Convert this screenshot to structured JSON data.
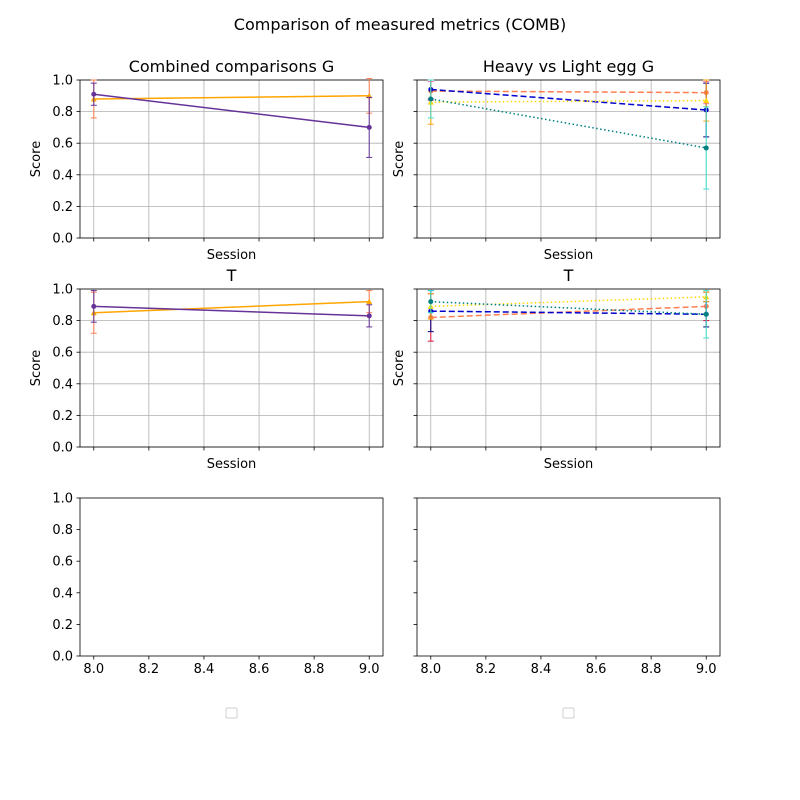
{
  "suptitle": "Comparison of measured metrics (COMB)",
  "chart_data": [
    {
      "type": "line",
      "title": "Combined comparisons G",
      "xlabel": "Session",
      "ylabel": "Score",
      "x": [
        8,
        9
      ],
      "xlim": [
        7.95,
        9.05
      ],
      "ylim": [
        0,
        1
      ],
      "xtick_labels_visible": false,
      "yticks": [
        "0.0",
        "0.2",
        "0.4",
        "0.6",
        "0.8",
        "1.0"
      ],
      "grid": true,
      "series": [
        {
          "values": [
            0.88,
            0.9
          ],
          "errors": [
            0.12,
            0.11
          ],
          "color": "#ffa500",
          "ecolor": "#ff7f50",
          "dash": "solid",
          "marker": "triangle"
        },
        {
          "values": [
            0.91,
            0.7
          ],
          "errors": [
            0.07,
            0.19
          ],
          "color": "#663399",
          "ecolor": "#663399",
          "dash": "solid",
          "marker": "circle"
        }
      ]
    },
    {
      "type": "line",
      "title": "Heavy vs Light egg G",
      "xlabel": "Session",
      "ylabel": "Score",
      "x": [
        8,
        9
      ],
      "xlim": [
        7.95,
        9.05
      ],
      "ylim": [
        0,
        1
      ],
      "xtick_labels_visible": false,
      "ytick_labels_visible": false,
      "yticks": [
        "0.0",
        "0.2",
        "0.4",
        "0.6",
        "0.8",
        "1.0"
      ],
      "grid": true,
      "series": [
        {
          "values": [
            0.93,
            0.92
          ],
          "errors": [
            0.06,
            0.07
          ],
          "color": "#ff7f50",
          "ecolor": "#ff69b4",
          "dash": "dashed",
          "marker": "circle"
        },
        {
          "values": [
            0.94,
            0.81
          ],
          "errors": [
            0.06,
            0.17
          ],
          "color": "#0000cd",
          "ecolor": "#000080",
          "dash": "dashed",
          "marker": "circle"
        },
        {
          "values": [
            0.86,
            0.87
          ],
          "errors": [
            0.14,
            0.13
          ],
          "color": "#ffd700",
          "ecolor": "#ffa500",
          "dash": "dotted",
          "marker": "triangle"
        },
        {
          "values": [
            0.88,
            0.57
          ],
          "errors": [
            0.12,
            0.26
          ],
          "color": "#008080",
          "ecolor": "#40e0d0",
          "dash": "dotted",
          "marker": "circle"
        }
      ]
    },
    {
      "type": "line",
      "title": "T",
      "xlabel": "Session",
      "ylabel": "Score",
      "x": [
        8,
        9
      ],
      "xlim": [
        7.95,
        9.05
      ],
      "ylim": [
        0,
        1
      ],
      "xtick_labels_visible": false,
      "yticks": [
        "0.0",
        "0.2",
        "0.4",
        "0.6",
        "0.8",
        "1.0"
      ],
      "grid": true,
      "series": [
        {
          "values": [
            0.85,
            0.92
          ],
          "errors": [
            0.13,
            0.07
          ],
          "color": "#ffa500",
          "ecolor": "#ff7f50",
          "dash": "solid",
          "marker": "triangle"
        },
        {
          "values": [
            0.89,
            0.83
          ],
          "errors": [
            0.1,
            0.07
          ],
          "color": "#663399",
          "ecolor": "#663399",
          "dash": "solid",
          "marker": "circle"
        }
      ]
    },
    {
      "type": "line",
      "title": "T",
      "xlabel": "Session",
      "ylabel": "Score",
      "x": [
        8,
        9
      ],
      "xlim": [
        7.95,
        9.05
      ],
      "ylim": [
        0,
        1
      ],
      "xtick_labels_visible": false,
      "ytick_labels_visible": false,
      "yticks": [
        "0.0",
        "0.2",
        "0.4",
        "0.6",
        "0.8",
        "1.0"
      ],
      "grid": true,
      "series": [
        {
          "values": [
            0.82,
            0.89
          ],
          "errors": [
            0.15,
            0.09
          ],
          "color": "#ff7f50",
          "ecolor": "#dc143c",
          "dash": "dashed",
          "marker": "circle"
        },
        {
          "values": [
            0.86,
            0.84
          ],
          "errors": [
            0.13,
            0.08
          ],
          "color": "#0000cd",
          "ecolor": "#000080",
          "dash": "dashed",
          "marker": "circle"
        },
        {
          "values": [
            0.89,
            0.95
          ],
          "errors": [
            0.08,
            0.03
          ],
          "color": "#ffd700",
          "ecolor": "#ffa500",
          "dash": "dotted",
          "marker": "triangle"
        },
        {
          "values": [
            0.92,
            0.84
          ],
          "errors": [
            0.07,
            0.15
          ],
          "color": "#008080",
          "ecolor": "#40e0d0",
          "dash": "dotted",
          "marker": "circle"
        }
      ]
    },
    {
      "type": "line",
      "title": "",
      "xlabel": "",
      "ylabel": "",
      "xlim": [
        7.95,
        9.05
      ],
      "ylim": [
        0,
        1
      ],
      "xticks": [
        "8.0",
        "8.2",
        "8.4",
        "8.6",
        "8.8",
        "9.0"
      ],
      "yticks": [
        "0.0",
        "0.2",
        "0.4",
        "0.6",
        "0.8",
        "1.0"
      ],
      "grid": false,
      "legend": "below, empty",
      "series": []
    },
    {
      "type": "line",
      "title": "",
      "xlabel": "",
      "ylabel": "",
      "xlim": [
        7.95,
        9.05
      ],
      "ylim": [
        0,
        1
      ],
      "xticks": [
        "8.0",
        "8.2",
        "8.4",
        "8.6",
        "8.8",
        "9.0"
      ],
      "yticks": [
        "0.0",
        "0.2",
        "0.4",
        "0.6",
        "0.8",
        "1.0"
      ],
      "ytick_labels_visible": false,
      "grid": false,
      "legend": "below, empty",
      "series": []
    }
  ]
}
